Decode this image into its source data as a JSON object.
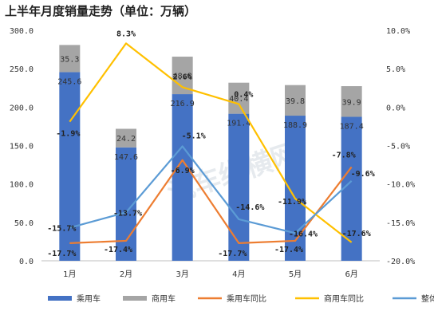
{
  "title": "上半年月度销量走势（单位：万辆）",
  "watermark": "汽车纵横网",
  "chart_data": {
    "type": "bar+line",
    "categories": [
      "1月",
      "2月",
      "3月",
      "4月",
      "5月",
      "6月"
    ],
    "y_left": {
      "range": [
        0,
        300
      ],
      "ticks": [
        "0.0",
        "50.0",
        "100.0",
        "150.0",
        "200.0",
        "250.0",
        "300.0"
      ]
    },
    "y_right": {
      "range": [
        -20,
        10
      ],
      "ticks": [
        "-20.0%",
        "-15.0%",
        "-10.0%",
        "-5.0%",
        "0.0%",
        "5.0%",
        "10.0%"
      ]
    },
    "bars": [
      {
        "name": "乘用车",
        "color": "#4472C4",
        "values": [
          245.6,
          147.6,
          216.9,
          191.4,
          188.9,
          187.4
        ],
        "labels": [
          "245.6",
          "147.6",
          "216.9",
          "191.4",
          "188.9",
          "187.4"
        ]
      },
      {
        "name": "商用车",
        "color": "#A5A5A5",
        "values": [
          35.3,
          24.2,
          48.8,
          40.4,
          39.8,
          39.9
        ],
        "labels": [
          "35.3",
          "24.2",
          "48.8",
          "40.4",
          "39.8",
          "39.9"
        ]
      }
    ],
    "lines": [
      {
        "name": "乘用车同比",
        "color": "#ED7D31",
        "values": [
          -17.7,
          -17.4,
          -6.9,
          -17.7,
          -17.4,
          -7.8
        ],
        "labels": [
          "-17.7%",
          "-17.4%",
          "-6.9%",
          "-17.7%",
          "-17.4%",
          "-7.8%"
        ]
      },
      {
        "name": "商用车同比",
        "color": "#FFC000",
        "values": [
          -1.9,
          8.3,
          2.6,
          0.4,
          -11.9,
          -17.6
        ],
        "labels": [
          "-1.9%",
          "8.3%",
          "2.6%",
          "0.4%",
          "-11.9%",
          "-17.6%"
        ]
      },
      {
        "name": "整体同比",
        "color": "#5B9BD5",
        "values": [
          -15.7,
          -13.7,
          -5.1,
          -14.6,
          -16.4,
          -9.6
        ],
        "labels": [
          "-15.7%",
          "-13.7%",
          "-5.1%",
          "-14.6%",
          "-16.4%",
          "-9.6%"
        ]
      }
    ],
    "legend_position": "bottom",
    "grid": false
  }
}
